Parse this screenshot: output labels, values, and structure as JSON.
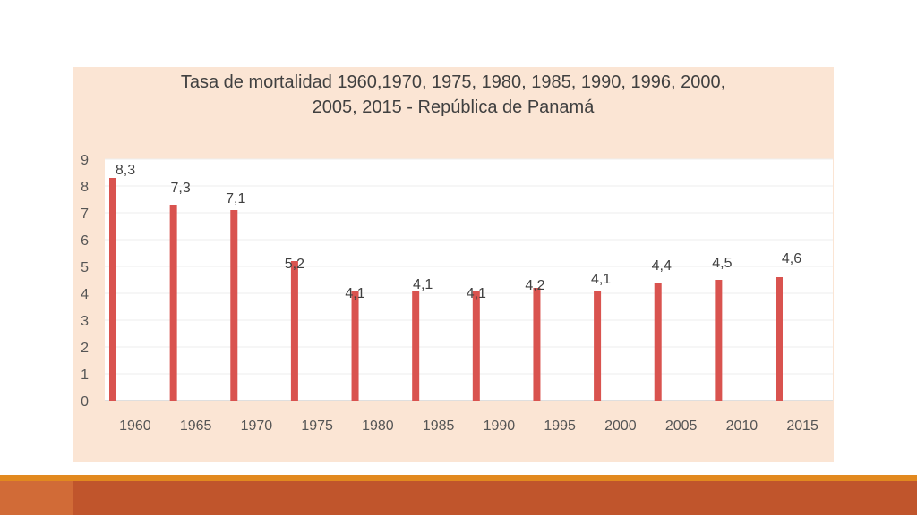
{
  "chart_data": {
    "type": "bar",
    "title_line1": "Tasa de mortalidad  1960,1970, 1975, 1980, 1985, 1990, 1996, 2000,",
    "title_line2": "2005, 2015 -  República de Panamá",
    "xlabel": "",
    "ylabel": "",
    "ylim": [
      0,
      9
    ],
    "yticks": [
      "0",
      "1",
      "2",
      "3",
      "4",
      "5",
      "6",
      "7",
      "8",
      "9"
    ],
    "x_tick_labels": [
      "1960",
      "1965",
      "1970",
      "1975",
      "1980",
      "1985",
      "1990",
      "1995",
      "2000",
      "2005",
      "2010",
      "2015"
    ],
    "values": [
      8.3,
      7.3,
      7.1,
      5.2,
      4.1,
      4.1,
      4.1,
      4.2,
      4.1,
      4.4,
      4.5,
      4.6
    ],
    "data_labels": [
      "8,3",
      "7,3",
      "7,1",
      "5,2",
      "4,1",
      "4,1",
      "4,1",
      "4,2",
      "4,1",
      "4,4",
      "4,5",
      "4,6"
    ],
    "bar_color": "#d9534f",
    "grid": true,
    "legend": "none"
  },
  "colors": {
    "panel": "#fbe5d4",
    "plot_area": "#ffffff",
    "accent_bar": "#e2891f",
    "footer": "#c0552c"
  }
}
